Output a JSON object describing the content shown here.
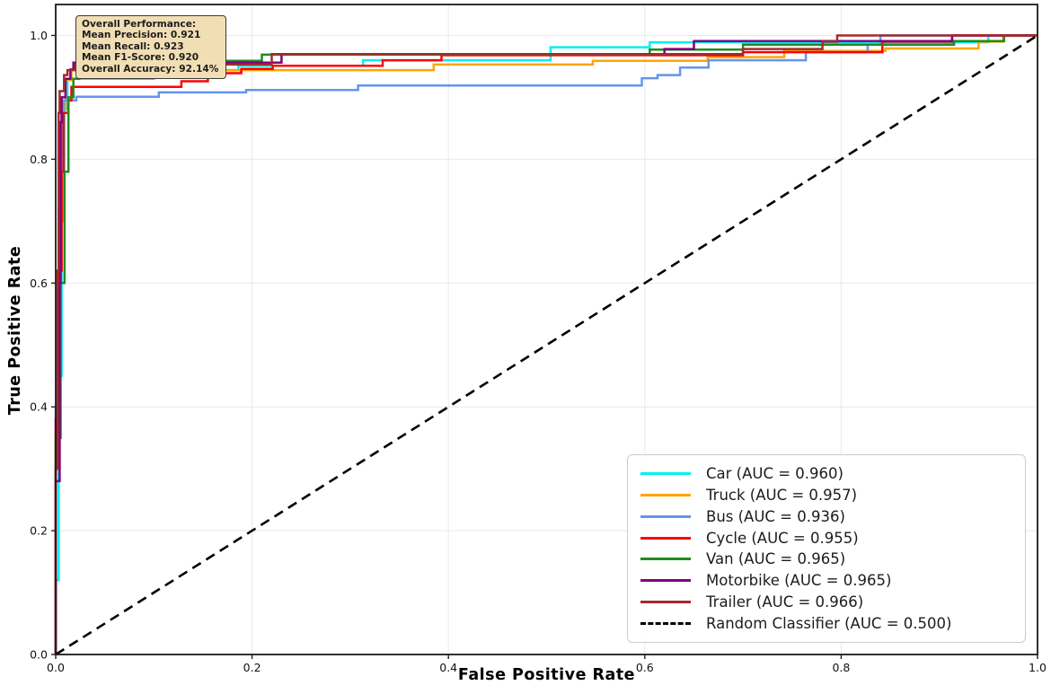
{
  "annotation": {
    "lines": [
      "Overall Performance:",
      "Mean Precision: 0.921",
      "Mean Recall: 0.923",
      "Mean F1-Score: 0.920",
      "Overall Accuracy: 92.14%"
    ]
  },
  "chart_data": {
    "type": "line",
    "subtype": "roc-curves",
    "title": "",
    "xlabel": "False Positive Rate",
    "ylabel": "True Positive Rate",
    "xlim": [
      0,
      1.0
    ],
    "ylim": [
      0,
      1.05
    ],
    "grid": true,
    "legend_position": "lower right",
    "ticks": {
      "values": [
        0,
        0.2,
        0.4,
        0.6,
        0.8,
        1.0
      ],
      "labels": [
        "0.0",
        "0.2",
        "0.4",
        "0.6",
        "0.8",
        "1.0"
      ]
    },
    "series": [
      {
        "name": "Car",
        "auc": 0.96,
        "label": "Car (AUC = 0.960)",
        "color": "#00EFEF",
        "points": [
          [
            0,
            0
          ],
          [
            0,
            0.12
          ],
          [
            0.003,
            0.12
          ],
          [
            0.003,
            0.45
          ],
          [
            0.006,
            0.45
          ],
          [
            0.006,
            0.7
          ],
          [
            0.009,
            0.7
          ],
          [
            0.009,
            0.88
          ],
          [
            0.012,
            0.88
          ],
          [
            0.012,
            0.93
          ],
          [
            0.1,
            0.93
          ],
          [
            0.1,
            0.938
          ],
          [
            0.157,
            0.938
          ],
          [
            0.157,
            0.944
          ],
          [
            0.186,
            0.944
          ],
          [
            0.186,
            0.951
          ],
          [
            0.313,
            0.951
          ],
          [
            0.313,
            0.96
          ],
          [
            0.504,
            0.96
          ],
          [
            0.504,
            0.981
          ],
          [
            0.605,
            0.981
          ],
          [
            0.605,
            0.989
          ],
          [
            0.95,
            0.989
          ],
          [
            0.95,
            1.0
          ],
          [
            1,
            1
          ]
        ]
      },
      {
        "name": "Truck",
        "auc": 0.957,
        "label": "Truck (AUC = 0.957)",
        "color": "#FFA500",
        "points": [
          [
            0,
            0
          ],
          [
            0,
            0.3
          ],
          [
            0.004,
            0.3
          ],
          [
            0.004,
            0.7
          ],
          [
            0.007,
            0.7
          ],
          [
            0.007,
            0.88
          ],
          [
            0.01,
            0.88
          ],
          [
            0.01,
            0.928
          ],
          [
            0.016,
            0.928
          ],
          [
            0.016,
            0.944
          ],
          [
            0.385,
            0.944
          ],
          [
            0.385,
            0.953
          ],
          [
            0.547,
            0.953
          ],
          [
            0.547,
            0.959
          ],
          [
            0.664,
            0.959
          ],
          [
            0.664,
            0.965
          ],
          [
            0.742,
            0.965
          ],
          [
            0.742,
            0.975
          ],
          [
            0.845,
            0.975
          ],
          [
            0.845,
            0.979
          ],
          [
            0.94,
            0.979
          ],
          [
            0.94,
            0.99
          ],
          [
            0.965,
            0.99
          ],
          [
            0.965,
            1.0
          ],
          [
            1,
            1
          ]
        ]
      },
      {
        "name": "Bus",
        "auc": 0.936,
        "label": "Bus (AUC = 0.936)",
        "color": "#6495ED",
        "points": [
          [
            0,
            0
          ],
          [
            0,
            0.4
          ],
          [
            0.003,
            0.4
          ],
          [
            0.003,
            0.72
          ],
          [
            0.006,
            0.72
          ],
          [
            0.006,
            0.88
          ],
          [
            0.008,
            0.88
          ],
          [
            0.008,
            0.895
          ],
          [
            0.021,
            0.895
          ],
          [
            0.021,
            0.901
          ],
          [
            0.105,
            0.901
          ],
          [
            0.105,
            0.908
          ],
          [
            0.194,
            0.908
          ],
          [
            0.194,
            0.912
          ],
          [
            0.308,
            0.912
          ],
          [
            0.308,
            0.919
          ],
          [
            0.597,
            0.919
          ],
          [
            0.597,
            0.931
          ],
          [
            0.613,
            0.931
          ],
          [
            0.613,
            0.936
          ],
          [
            0.636,
            0.936
          ],
          [
            0.636,
            0.948
          ],
          [
            0.665,
            0.948
          ],
          [
            0.665,
            0.96
          ],
          [
            0.764,
            0.96
          ],
          [
            0.764,
            0.973
          ],
          [
            0.827,
            0.973
          ],
          [
            0.827,
            0.985
          ],
          [
            0.84,
            0.985
          ],
          [
            0.84,
            1.0
          ],
          [
            1,
            1
          ]
        ]
      },
      {
        "name": "Cycle",
        "auc": 0.955,
        "label": "Cycle (AUC = 0.955)",
        "color": "#FF0000",
        "points": [
          [
            0,
            0
          ],
          [
            0,
            0.38
          ],
          [
            0.003,
            0.38
          ],
          [
            0.003,
            0.62
          ],
          [
            0.006,
            0.62
          ],
          [
            0.006,
            0.78
          ],
          [
            0.008,
            0.78
          ],
          [
            0.008,
            0.875
          ],
          [
            0.013,
            0.875
          ],
          [
            0.013,
            0.895
          ],
          [
            0.016,
            0.895
          ],
          [
            0.016,
            0.917
          ],
          [
            0.128,
            0.917
          ],
          [
            0.128,
            0.926
          ],
          [
            0.155,
            0.926
          ],
          [
            0.155,
            0.939
          ],
          [
            0.189,
            0.939
          ],
          [
            0.189,
            0.946
          ],
          [
            0.221,
            0.946
          ],
          [
            0.221,
            0.951
          ],
          [
            0.333,
            0.951
          ],
          [
            0.333,
            0.96
          ],
          [
            0.393,
            0.96
          ],
          [
            0.393,
            0.968
          ],
          [
            0.7,
            0.968
          ],
          [
            0.7,
            0.973
          ],
          [
            0.842,
            0.973
          ],
          [
            0.842,
            0.99
          ],
          [
            0.913,
            0.99
          ],
          [
            0.913,
            1.0
          ],
          [
            1,
            1
          ]
        ]
      },
      {
        "name": "Van",
        "auc": 0.965,
        "label": "Van (AUC = 0.965)",
        "color": "#1F8B1F",
        "points": [
          [
            0,
            0
          ],
          [
            0,
            0.35
          ],
          [
            0.005,
            0.35
          ],
          [
            0.005,
            0.6
          ],
          [
            0.009,
            0.6
          ],
          [
            0.009,
            0.78
          ],
          [
            0.013,
            0.78
          ],
          [
            0.013,
            0.9
          ],
          [
            0.018,
            0.9
          ],
          [
            0.018,
            0.93
          ],
          [
            0.024,
            0.93
          ],
          [
            0.024,
            0.945
          ],
          [
            0.028,
            0.945
          ],
          [
            0.028,
            0.953
          ],
          [
            0.099,
            0.953
          ],
          [
            0.099,
            0.959
          ],
          [
            0.21,
            0.959
          ],
          [
            0.21,
            0.969
          ],
          [
            0.605,
            0.969
          ],
          [
            0.605,
            0.977
          ],
          [
            0.7,
            0.977
          ],
          [
            0.7,
            0.985
          ],
          [
            0.915,
            0.985
          ],
          [
            0.915,
            0.991
          ],
          [
            0.966,
            0.991
          ],
          [
            0.966,
            1.0
          ],
          [
            1,
            1
          ]
        ]
      },
      {
        "name": "Motorbike",
        "auc": 0.965,
        "label": "Motorbike (AUC = 0.965)",
        "color": "#800080",
        "points": [
          [
            0,
            0
          ],
          [
            0,
            0.28
          ],
          [
            0.004,
            0.28
          ],
          [
            0.004,
            0.6
          ],
          [
            0.005,
            0.6
          ],
          [
            0.005,
            0.86
          ],
          [
            0.006,
            0.86
          ],
          [
            0.006,
            0.9
          ],
          [
            0.01,
            0.9
          ],
          [
            0.01,
            0.93
          ],
          [
            0.015,
            0.93
          ],
          [
            0.015,
            0.945
          ],
          [
            0.018,
            0.945
          ],
          [
            0.018,
            0.956
          ],
          [
            0.23,
            0.956
          ],
          [
            0.23,
            0.97
          ],
          [
            0.62,
            0.97
          ],
          [
            0.62,
            0.978
          ],
          [
            0.65,
            0.978
          ],
          [
            0.65,
            0.991
          ],
          [
            0.913,
            0.991
          ],
          [
            0.913,
            1.0
          ],
          [
            1,
            1
          ]
        ]
      },
      {
        "name": "Trailer",
        "auc": 0.966,
        "label": "Trailer (AUC = 0.966)",
        "color": "#A52A2A",
        "points": [
          [
            0,
            0
          ],
          [
            0,
            0.3
          ],
          [
            0.002,
            0.3
          ],
          [
            0.002,
            0.62
          ],
          [
            0.003,
            0.62
          ],
          [
            0.003,
            0.875
          ],
          [
            0.004,
            0.875
          ],
          [
            0.004,
            0.91
          ],
          [
            0.0085,
            0.91
          ],
          [
            0.0085,
            0.936
          ],
          [
            0.012,
            0.936
          ],
          [
            0.012,
            0.944
          ],
          [
            0.02,
            0.944
          ],
          [
            0.02,
            0.953
          ],
          [
            0.22,
            0.953
          ],
          [
            0.22,
            0.97
          ],
          [
            0.7,
            0.97
          ],
          [
            0.7,
            0.978
          ],
          [
            0.781,
            0.978
          ],
          [
            0.781,
            0.99
          ],
          [
            0.796,
            0.99
          ],
          [
            0.796,
            1.0
          ],
          [
            1,
            1
          ]
        ]
      }
    ],
    "reference_line": {
      "name": "Random Classifier",
      "auc": 0.5,
      "label": "Random Classifier (AUC = 0.500)",
      "color": "#000000",
      "dashed": true,
      "points": [
        [
          0,
          0
        ],
        [
          1,
          1
        ]
      ]
    }
  }
}
